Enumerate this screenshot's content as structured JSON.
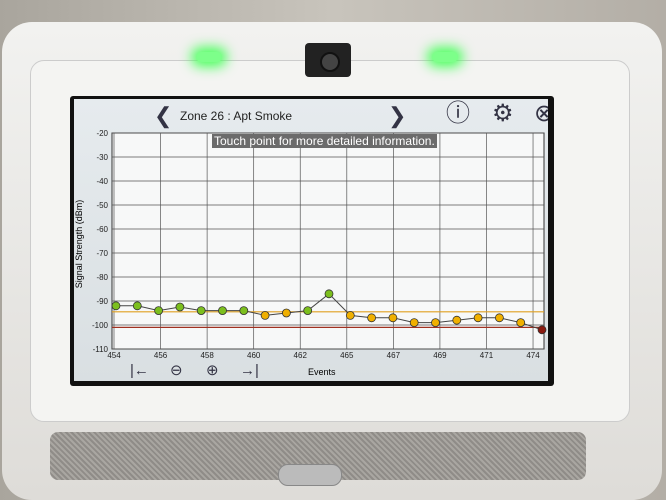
{
  "header": {
    "title": "Zone 26 :  Apt Smoke",
    "tooltip": "Touch point for more detailed information."
  },
  "icons": [
    "chevron-left",
    "chevron-right",
    "info",
    "gear",
    "close",
    "jump-start",
    "zoom-out",
    "zoom-in",
    "jump-end"
  ],
  "chart_data": {
    "type": "line",
    "xlabel": "Events",
    "ylabel": "Signal Strength (dBm)",
    "ylim": [
      -110,
      -20
    ],
    "yticks": [
      -20,
      -30,
      -40,
      -50,
      -60,
      -70,
      -80,
      -90,
      -100,
      -110
    ],
    "xtick_labels": [
      "454",
      "456",
      "458",
      "460",
      "462",
      "465",
      "467",
      "469",
      "471",
      "474"
    ],
    "x": [
      454,
      455,
      456,
      457,
      458,
      459,
      460,
      461,
      462,
      463,
      464,
      465,
      466,
      467,
      468,
      469,
      470,
      471,
      472,
      473,
      474
    ],
    "values": [
      -92,
      -92,
      -94,
      -92.5,
      -94,
      -94,
      -94,
      -96,
      -95,
      -94,
      -87,
      -96,
      -97,
      -97,
      -99,
      -99,
      -98,
      -97,
      -97,
      -99,
      -102
    ],
    "thresholds": [
      {
        "value": -94.5,
        "color": "#e0a020"
      },
      {
        "value": -101,
        "color": "#a03020"
      }
    ],
    "point_colors": {
      "good": "#7cbf1e",
      "warn": "#f0b000",
      "bad": "#8a1a10"
    },
    "grid": true
  }
}
